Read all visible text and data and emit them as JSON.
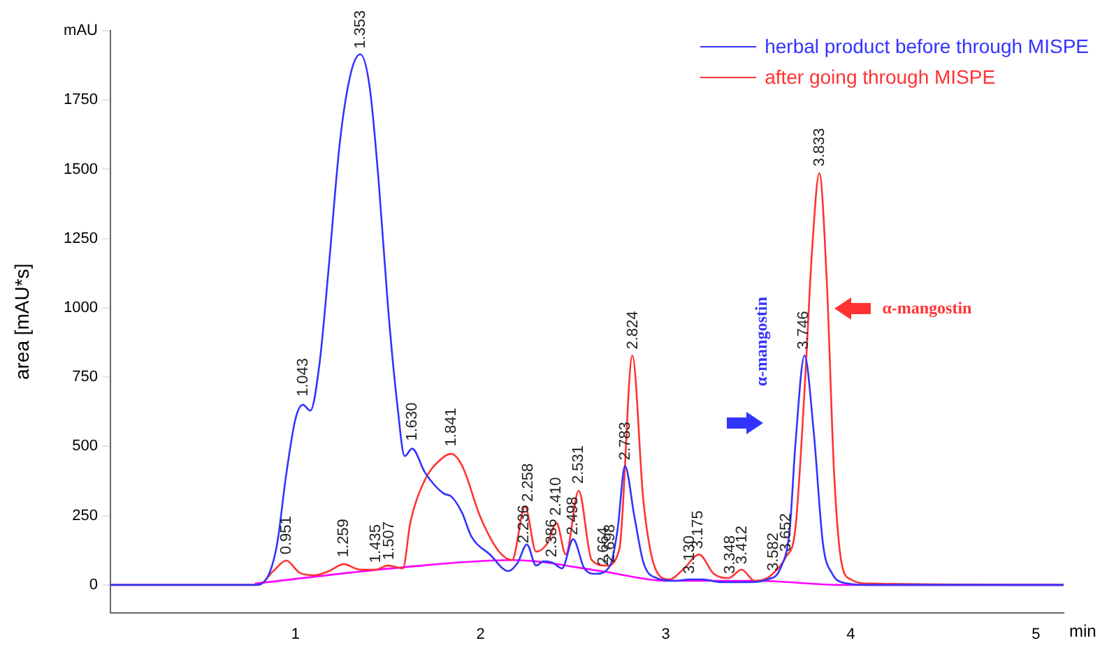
{
  "chart_data": {
    "type": "line",
    "xlabel": "min",
    "ylabel": "area [mAU*s]",
    "xlim": [
      0,
      5.15
    ],
    "ylim": [
      -100,
      2000
    ],
    "xticks": [
      1,
      2,
      3,
      4,
      5
    ],
    "yticks": [
      0,
      250,
      500,
      750,
      1000,
      1250,
      1500,
      1750,
      {
        "value": 2000,
        "label": "mAU"
      }
    ],
    "grid": false,
    "legend": "top right",
    "series": [
      {
        "name": "herbal product  before through MISPE",
        "color": "#3333ff",
        "x": [
          0,
          0.78,
          0.85,
          0.9,
          0.95,
          1.0,
          1.04,
          1.08,
          1.13,
          1.18,
          1.24,
          1.3,
          1.35,
          1.4,
          1.45,
          1.5,
          1.55,
          1.59,
          1.63,
          1.7,
          1.8,
          1.84,
          1.9,
          1.95,
          2.05,
          2.15,
          2.2,
          2.25,
          2.3,
          2.34,
          2.39,
          2.44,
          2.5,
          2.56,
          2.62,
          2.7,
          2.74,
          2.78,
          2.83,
          2.88,
          2.95,
          3.05,
          3.13,
          3.2,
          3.3,
          3.45,
          3.55,
          3.62,
          3.67,
          3.7,
          3.75,
          3.8,
          3.85,
          3.9,
          3.95,
          4.1,
          5.15
        ],
        "values": [
          0,
          0,
          30,
          146,
          400,
          600,
          650,
          629,
          800,
          1150,
          1600,
          1850,
          1915,
          1800,
          1450,
          1000,
          650,
          465,
          492,
          405,
          330,
          320,
          260,
          175,
          110,
          50,
          80,
          146,
          70,
          85,
          80,
          60,
          165,
          60,
          40,
          70,
          200,
          429,
          250,
          80,
          25,
          15,
          20,
          20,
          10,
          10,
          20,
          60,
          200,
          500,
          828,
          550,
          146,
          40,
          10,
          0,
          0
        ]
      },
      {
        "name": "after going through MISPE",
        "color": "#ff3333",
        "x": [
          0,
          0.8,
          0.88,
          0.95,
          1.02,
          1.1,
          1.18,
          1.26,
          1.35,
          1.43,
          1.5,
          1.58,
          1.62,
          1.7,
          1.78,
          1.84,
          1.9,
          2.0,
          2.1,
          2.17,
          2.24,
          2.3,
          2.36,
          2.41,
          2.46,
          2.53,
          2.6,
          2.68,
          2.75,
          2.82,
          2.88,
          2.95,
          3.02,
          3.1,
          3.18,
          3.26,
          3.34,
          3.41,
          3.48,
          3.56,
          3.65,
          3.7,
          3.75,
          3.79,
          3.83,
          3.87,
          3.91,
          3.95,
          4.0,
          4.1,
          5.15
        ],
        "values": [
          0,
          0,
          50,
          88,
          45,
          35,
          50,
          75,
          55,
          55,
          70,
          60,
          224,
          380,
          450,
          473,
          430,
          243,
          120,
          90,
          283,
          120,
          150,
          224,
          110,
          340,
          90,
          70,
          130,
          828,
          300,
          50,
          20,
          60,
          110,
          40,
          25,
          55,
          15,
          30,
          102,
          200,
          700,
          1200,
          1486,
          1100,
          400,
          80,
          20,
          5,
          0
        ]
      },
      {
        "color": "#ff00ff",
        "x": [
          0.78,
          1.6,
          2.17,
          2.65,
          3.0,
          3.5,
          3.95,
          5.15
        ],
        "values": [
          5,
          65,
          90,
          50,
          15,
          15,
          0,
          0
        ]
      }
    ],
    "annotations": [
      {
        "text": "0.951",
        "x": 0.951,
        "y": 110
      },
      {
        "text": "1.043",
        "x": 1.043,
        "y": 680
      },
      {
        "text": "1.259",
        "x": 1.259,
        "y": 100
      },
      {
        "text": "1.353",
        "x": 1.353,
        "y": 1935
      },
      {
        "text": "1.435",
        "x": 1.435,
        "y": 80
      },
      {
        "text": "1.507",
        "x": 1.507,
        "y": 90
      },
      {
        "text": "1.630",
        "x": 1.63,
        "y": 520
      },
      {
        "text": "1.841",
        "x": 1.841,
        "y": 500
      },
      {
        "text": "2.236",
        "x": 2.236,
        "y": 150
      },
      {
        "text": "2.258",
        "x": 2.258,
        "y": 300
      },
      {
        "text": "2.386",
        "x": 2.386,
        "y": 100
      },
      {
        "text": "2.410",
        "x": 2.41,
        "y": 250
      },
      {
        "text": "2.498",
        "x": 2.498,
        "y": 180
      },
      {
        "text": "2.531",
        "x": 2.531,
        "y": 365
      },
      {
        "text": "2.664",
        "x": 2.664,
        "y": 70
      },
      {
        "text": "2.698",
        "x": 2.698,
        "y": 80
      },
      {
        "text": "2.783",
        "x": 2.783,
        "y": 450
      },
      {
        "text": "2.824",
        "x": 2.824,
        "y": 850
      },
      {
        "text": "3.130",
        "x": 3.13,
        "y": 40
      },
      {
        "text": "3.175",
        "x": 3.175,
        "y": 130
      },
      {
        "text": "3.348",
        "x": 3.348,
        "y": 40
      },
      {
        "text": "3.412",
        "x": 3.412,
        "y": 75
      },
      {
        "text": "3.582",
        "x": 3.582,
        "y": 50
      },
      {
        "text": "3.652",
        "x": 3.652,
        "y": 120
      },
      {
        "text": "3.746",
        "x": 3.746,
        "y": 850
      },
      {
        "text": "3.833",
        "x": 3.833,
        "y": 1510
      },
      "α-mangostin",
      "α-mangostin"
    ]
  }
}
